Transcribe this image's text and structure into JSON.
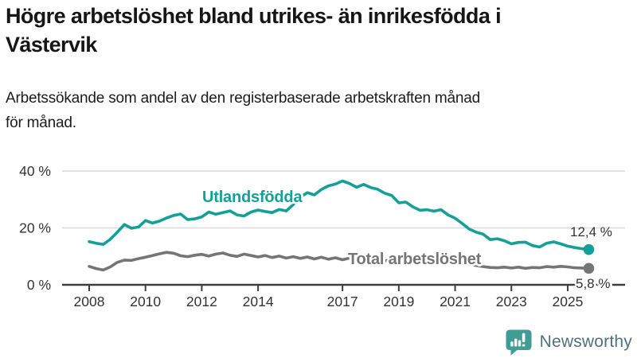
{
  "title": "Högre arbetslöshet bland utrikes- än inrikesfödda i\nVästervik",
  "subtitle": "Arbetssökande som andel av den registerbaserade arbetskraften månad\nför månad.",
  "logo": {
    "text": "Newsworthy",
    "icon": "speech-bubble-bar-chart-icon",
    "icon_color": "#3f9d95",
    "text_color": "#51707f"
  },
  "chart_data": {
    "type": "line",
    "title": "Högre arbetslöshet bland utrikes- än inrikesfödda i Västervik",
    "subtitle": "Arbetssökande som andel av den registerbaserade arbetskraften månad för månad.",
    "x_unit": "year",
    "x_start": 2008.0,
    "x_step": 0.25,
    "x_end": 2025.75,
    "ylim": [
      0,
      40
    ],
    "grid": "horizontal",
    "y_ticks": [
      {
        "v": 0,
        "label": "0 %"
      },
      {
        "v": 20,
        "label": "20 %"
      },
      {
        "v": 40,
        "label": "40 %"
      }
    ],
    "x_ticks": [
      {
        "v": 2008,
        "label": "2008"
      },
      {
        "v": 2010,
        "label": "2010"
      },
      {
        "v": 2012,
        "label": "2012"
      },
      {
        "v": 2014,
        "label": "2014"
      },
      {
        "v": 2017,
        "label": "2017"
      },
      {
        "v": 2019,
        "label": "2019"
      },
      {
        "v": 2021,
        "label": "2021"
      },
      {
        "v": 2023,
        "label": "2023"
      },
      {
        "v": 2025,
        "label": "2025"
      }
    ],
    "series": [
      {
        "name": "Utlandsfödda",
        "color": "#14a097",
        "end_label": "12,4 %",
        "end_value": 12.4,
        "values": [
          15.2,
          14.6,
          14.2,
          16.0,
          18.5,
          21.2,
          19.9,
          20.3,
          22.6,
          21.7,
          22.4,
          23.5,
          24.4,
          24.9,
          22.9,
          23.2,
          23.9,
          25.6,
          24.8,
          25.4,
          26.0,
          24.6,
          24.2,
          25.6,
          26.3,
          25.8,
          25.4,
          26.5,
          26.0,
          28.2,
          30.8,
          32.4,
          31.6,
          33.5,
          34.8,
          35.4,
          36.5,
          35.6,
          34.3,
          35.3,
          34.2,
          33.6,
          32.2,
          31.4,
          28.8,
          29.1,
          27.4,
          26.2,
          26.4,
          25.9,
          26.4,
          24.6,
          23.4,
          21.6,
          19.6,
          18.5,
          17.8,
          15.9,
          16.2,
          15.5,
          14.4,
          14.9,
          15.0,
          13.8,
          13.3,
          14.6,
          15.1,
          14.4,
          13.6,
          13.1,
          12.7,
          12.4
        ]
      },
      {
        "name": "Total arbetslöshet",
        "color": "#757575",
        "end_label": "5,8 %",
        "end_value": 5.8,
        "values": [
          6.5,
          5.7,
          5.2,
          6.3,
          7.9,
          8.7,
          8.6,
          9.2,
          9.7,
          10.3,
          10.9,
          11.4,
          11.1,
          10.2,
          9.9,
          10.4,
          10.7,
          10.1,
          10.8,
          11.2,
          10.4,
          10.0,
          10.8,
          10.3,
          9.8,
          10.3,
          9.6,
          10.1,
          9.4,
          9.9,
          9.3,
          9.8,
          9.1,
          9.7,
          9.0,
          9.5,
          8.8,
          9.4,
          8.7,
          9.2,
          8.5,
          9.1,
          8.4,
          8.9,
          8.3,
          8.8,
          8.2,
          8.6,
          9.0,
          9.6,
          9.3,
          8.9,
          8.3,
          7.7,
          7.2,
          6.8,
          6.4,
          6.1,
          6.0,
          6.2,
          5.9,
          6.2,
          5.8,
          6.1,
          6.0,
          6.4,
          6.2,
          6.5,
          6.3,
          6.0,
          5.9,
          5.8
        ]
      }
    ],
    "legend_position": "inline-labels",
    "colors": {
      "grid": "#dadada",
      "axis": "#3d3d3d",
      "tick_text": "#333333"
    }
  }
}
